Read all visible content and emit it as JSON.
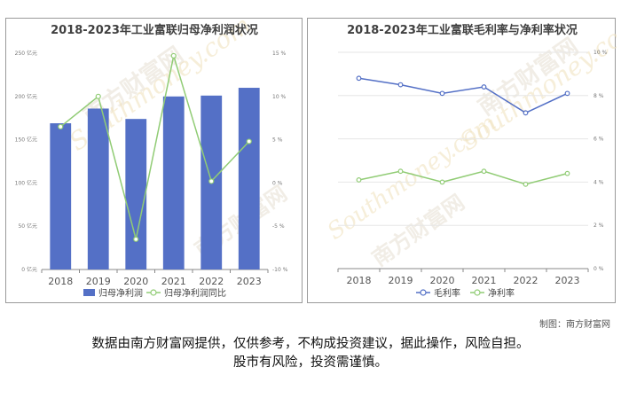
{
  "chart_data": [
    {
      "type": "bar",
      "title": "2018-2023年工业富联归母净利润状况",
      "categories": [
        "2018",
        "2019",
        "2020",
        "2021",
        "2022",
        "2023"
      ],
      "series": [
        {
          "name": "归母净利润",
          "type": "bar",
          "axis": "left",
          "color": "#5470c6",
          "values": [
            169,
            186,
            174,
            200,
            201,
            210
          ]
        },
        {
          "name": "归母净利润同比",
          "type": "line",
          "axis": "right",
          "color": "#91cc75",
          "values": [
            6.5,
            10.0,
            -6.5,
            14.7,
            0.2,
            4.8
          ]
        }
      ],
      "y_left": {
        "ticks": [
          "0 亿元",
          "50 亿元",
          "100 亿元",
          "150 亿元",
          "200 亿元",
          "250 亿元"
        ],
        "range": [
          0,
          250
        ]
      },
      "y_right": {
        "ticks": [
          "-10 %",
          "-5 %",
          "0 %",
          "5 %",
          "10 %",
          "15 %"
        ],
        "range": [
          -10,
          15
        ]
      },
      "legend_position": "bottom-center",
      "grid": false
    },
    {
      "type": "line",
      "title": "2018-2023年工业富联毛利率与净利率状况",
      "categories": [
        "2018",
        "2019",
        "2020",
        "2021",
        "2022",
        "2023"
      ],
      "series": [
        {
          "name": "毛利率",
          "color": "#5470c6",
          "values": [
            8.8,
            8.5,
            8.1,
            8.4,
            7.2,
            8.1
          ]
        },
        {
          "name": "净利率",
          "color": "#91cc75",
          "values": [
            4.1,
            4.5,
            4.0,
            4.5,
            3.9,
            4.4
          ]
        }
      ],
      "y_right": {
        "ticks": [
          "0 %",
          "2 %",
          "4 %",
          "6 %",
          "8 %",
          "10 %"
        ],
        "range": [
          0,
          10
        ]
      },
      "legend_position": "bottom-center",
      "grid": true
    }
  ],
  "watermark": {
    "cn": "南方财富网",
    "en": "Southmoney.com"
  },
  "credit": "制图：南方财富网",
  "disclaimer": [
    "数据由南方财富网提供，仅供参考，不构成投资建议，据此操作，风险自担。",
    "股市有风险，投资需谨慎。"
  ]
}
